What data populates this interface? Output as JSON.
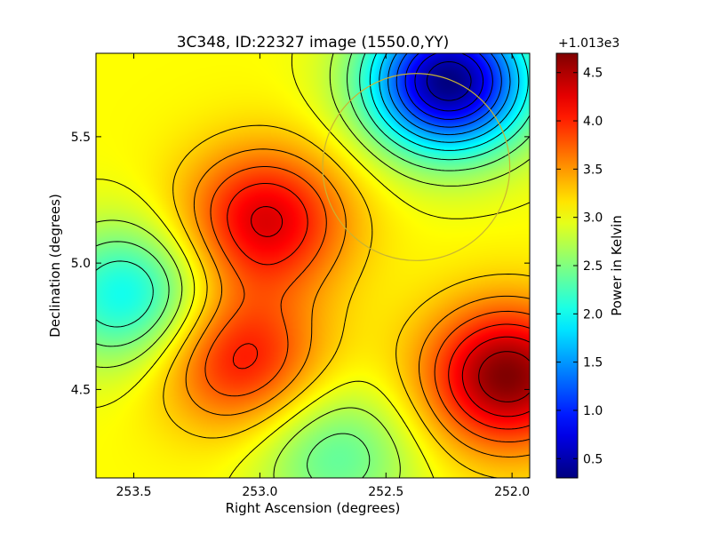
{
  "chart_data": {
    "type": "heatmap",
    "title": "3C348, ID:22327 image (1550.0,YY)",
    "xlabel": "Right Ascension (degrees)",
    "ylabel": "Declination (degrees)",
    "xlim": [
      253.65,
      251.93
    ],
    "ylim": [
      4.15,
      5.83
    ],
    "x_ticks": [
      "253.5",
      "253.0",
      "252.5",
      "252.0"
    ],
    "y_ticks": [
      "4.5",
      "5.0",
      "5.5"
    ],
    "colorbar": {
      "label": "Power in Kelvin",
      "offset_text": "+1.013e3",
      "range": [
        0.3,
        4.7
      ],
      "ticks": [
        "0.5",
        "1.0",
        "1.5",
        "2.0",
        "2.5",
        "3.0",
        "3.5",
        "4.0",
        "4.5"
      ],
      "colormap": "jet"
    },
    "contour_levels": [
      0.5,
      0.75,
      1.0,
      1.25,
      1.5,
      1.75,
      2.0,
      2.25,
      2.5,
      2.75,
      3.0,
      3.25,
      3.5,
      3.75,
      4.0,
      4.25,
      4.5
    ],
    "field_features": [
      {
        "feature": "minimum",
        "ra": 252.25,
        "dec": 5.72,
        "value": 0.3
      },
      {
        "feature": "maximum",
        "ra": 252.02,
        "dec": 4.55,
        "value": 4.7
      },
      {
        "feature": "local maximum",
        "ra": 252.98,
        "dec": 5.17,
        "value": 4.3
      },
      {
        "feature": "local maximum",
        "ra": 253.08,
        "dec": 4.62,
        "value": 4.1
      },
      {
        "feature": "local minimum",
        "ra": 253.52,
        "dec": 4.87,
        "value": 1.95
      },
      {
        "feature": "local minimum",
        "ra": 252.7,
        "dec": 4.24,
        "value": 2.35
      }
    ],
    "beam_circle": {
      "ra": 252.38,
      "dec": 5.38,
      "radius_deg": 0.37,
      "color": "#c8b432"
    },
    "contour_color": "#000000"
  }
}
